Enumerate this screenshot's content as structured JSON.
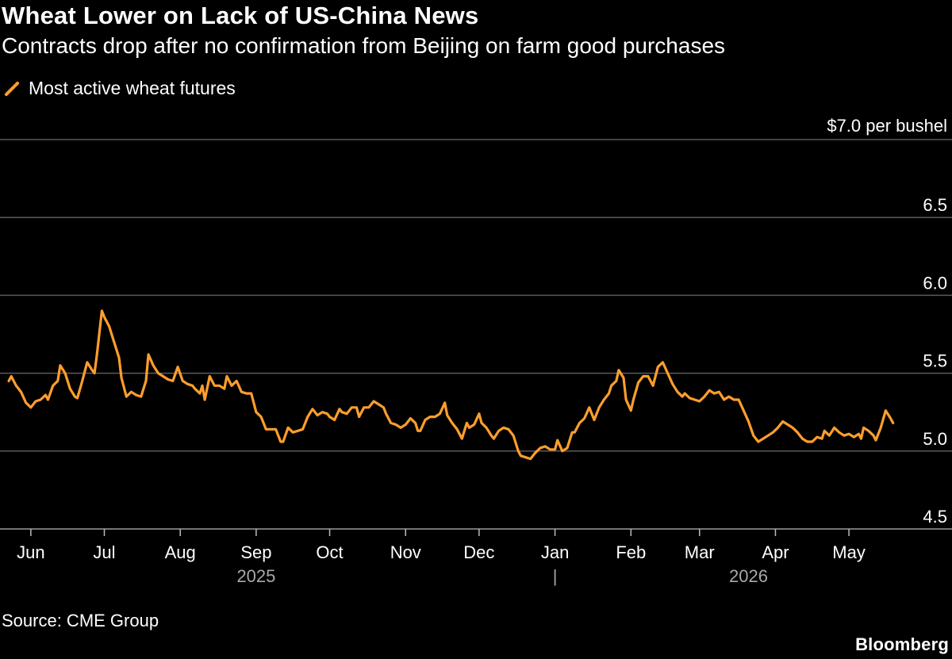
{
  "header": {
    "title": "Wheat Lower on Lack of US-China News",
    "subtitle": "Contracts drop after no confirmation from Beijing on farm good purchases"
  },
  "footer": {
    "source": "Source: CME Group",
    "brand": "Bloomberg"
  },
  "colors": {
    "background": "#000000",
    "series": "#ff9e2c",
    "grid": "#5a5a5a",
    "year_label": "#a8a8a8"
  },
  "chart_data": {
    "type": "line",
    "legend": {
      "placement": "top-left"
    },
    "grid": true,
    "y_axis": {
      "position": "right",
      "unit_label": "$7.0 per bushel",
      "ylim": [
        4.5,
        7.0
      ],
      "ticks": [
        {
          "value": 7.0,
          "label": ""
        },
        {
          "value": 6.5,
          "label": "6.5"
        },
        {
          "value": 6.0,
          "label": "6.0"
        },
        {
          "value": 5.5,
          "label": "5.5"
        },
        {
          "value": 5.0,
          "label": "5.0"
        },
        {
          "value": 4.5,
          "label": "4.5"
        }
      ]
    },
    "x_axis": {
      "xlim": [
        "2025-05-22",
        "2026-05-23"
      ],
      "month_ticks": [
        {
          "date": "2025-06-01",
          "label": "Jun"
        },
        {
          "date": "2025-07-01",
          "label": "Jul"
        },
        {
          "date": "2025-08-01",
          "label": "Aug"
        },
        {
          "date": "2025-09-01",
          "label": "Sep"
        },
        {
          "date": "2025-10-01",
          "label": "Oct"
        },
        {
          "date": "2025-11-01",
          "label": "Nov"
        },
        {
          "date": "2025-12-01",
          "label": "Dec"
        },
        {
          "date": "2026-01-01",
          "label": "Jan"
        },
        {
          "date": "2026-02-01",
          "label": "Feb"
        },
        {
          "date": "2026-03-01",
          "label": "Mar"
        },
        {
          "date": "2026-04-01",
          "label": "Apr"
        },
        {
          "date": "2026-05-01",
          "label": "May"
        }
      ],
      "year_labels": [
        {
          "date": "2025-09-01",
          "label": "2025"
        },
        {
          "date": "2026-03-21",
          "label": "2026"
        }
      ],
      "year_divider": {
        "date": "2026-01-01",
        "label": "|"
      }
    },
    "series": [
      {
        "name": "Most active wheat futures",
        "points": [
          [
            "2025-05-23",
            5.45
          ],
          [
            "2025-05-24",
            5.48
          ],
          [
            "2025-05-26",
            5.42
          ],
          [
            "2025-05-28",
            5.38
          ],
          [
            "2025-05-30",
            5.31
          ],
          [
            "2025-06-01",
            5.28
          ],
          [
            "2025-06-03",
            5.32
          ],
          [
            "2025-06-05",
            5.33
          ],
          [
            "2025-06-07",
            5.36
          ],
          [
            "2025-06-08",
            5.33
          ],
          [
            "2025-06-10",
            5.42
          ],
          [
            "2025-06-12",
            5.45
          ],
          [
            "2025-06-13",
            5.55
          ],
          [
            "2025-06-15",
            5.5
          ],
          [
            "2025-06-17",
            5.4
          ],
          [
            "2025-06-19",
            5.35
          ],
          [
            "2025-06-20",
            5.34
          ],
          [
            "2025-06-22",
            5.45
          ],
          [
            "2025-06-24",
            5.57
          ],
          [
            "2025-06-26",
            5.52
          ],
          [
            "2025-06-27",
            5.5
          ],
          [
            "2025-06-28",
            5.62
          ],
          [
            "2025-06-30",
            5.9
          ],
          [
            "2025-07-01",
            5.86
          ],
          [
            "2025-07-03",
            5.8
          ],
          [
            "2025-07-05",
            5.7
          ],
          [
            "2025-07-07",
            5.6
          ],
          [
            "2025-07-08",
            5.47
          ],
          [
            "2025-07-10",
            5.35
          ],
          [
            "2025-07-12",
            5.38
          ],
          [
            "2025-07-14",
            5.36
          ],
          [
            "2025-07-16",
            5.35
          ],
          [
            "2025-07-18",
            5.45
          ],
          [
            "2025-07-19",
            5.62
          ],
          [
            "2025-07-21",
            5.55
          ],
          [
            "2025-07-23",
            5.5
          ],
          [
            "2025-07-25",
            5.48
          ],
          [
            "2025-07-27",
            5.46
          ],
          [
            "2025-07-29",
            5.45
          ],
          [
            "2025-07-31",
            5.54
          ],
          [
            "2025-08-02",
            5.45
          ],
          [
            "2025-08-04",
            5.43
          ],
          [
            "2025-08-06",
            5.42
          ],
          [
            "2025-08-07",
            5.4
          ],
          [
            "2025-08-09",
            5.37
          ],
          [
            "2025-08-10",
            5.42
          ],
          [
            "2025-08-11",
            5.33
          ],
          [
            "2025-08-13",
            5.48
          ],
          [
            "2025-08-15",
            5.42
          ],
          [
            "2025-08-17",
            5.42
          ],
          [
            "2025-08-19",
            5.4
          ],
          [
            "2025-08-20",
            5.48
          ],
          [
            "2025-08-22",
            5.42
          ],
          [
            "2025-08-24",
            5.45
          ],
          [
            "2025-08-26",
            5.38
          ],
          [
            "2025-08-28",
            5.37
          ],
          [
            "2025-08-30",
            5.37
          ],
          [
            "2025-09-01",
            5.25
          ],
          [
            "2025-09-03",
            5.22
          ],
          [
            "2025-09-05",
            5.14
          ],
          [
            "2025-09-07",
            5.14
          ],
          [
            "2025-09-09",
            5.14
          ],
          [
            "2025-09-11",
            5.06
          ],
          [
            "2025-09-12",
            5.06
          ],
          [
            "2025-09-14",
            5.15
          ],
          [
            "2025-09-16",
            5.12
          ],
          [
            "2025-09-18",
            5.13
          ],
          [
            "2025-09-20",
            5.14
          ],
          [
            "2025-09-22",
            5.22
          ],
          [
            "2025-09-24",
            5.27
          ],
          [
            "2025-09-26",
            5.23
          ],
          [
            "2025-09-28",
            5.25
          ],
          [
            "2025-09-30",
            5.24
          ],
          [
            "2025-10-01",
            5.22
          ],
          [
            "2025-10-03",
            5.2
          ],
          [
            "2025-10-05",
            5.27
          ],
          [
            "2025-10-06",
            5.25
          ],
          [
            "2025-10-08",
            5.24
          ],
          [
            "2025-10-10",
            5.28
          ],
          [
            "2025-10-12",
            5.28
          ],
          [
            "2025-10-13",
            5.22
          ],
          [
            "2025-10-15",
            5.28
          ],
          [
            "2025-10-17",
            5.28
          ],
          [
            "2025-10-19",
            5.32
          ],
          [
            "2025-10-21",
            5.3
          ],
          [
            "2025-10-23",
            5.28
          ],
          [
            "2025-10-24",
            5.24
          ],
          [
            "2025-10-26",
            5.18
          ],
          [
            "2025-10-28",
            5.17
          ],
          [
            "2025-10-30",
            5.15
          ],
          [
            "2025-11-01",
            5.17
          ],
          [
            "2025-11-03",
            5.21
          ],
          [
            "2025-11-05",
            5.18
          ],
          [
            "2025-11-06",
            5.13
          ],
          [
            "2025-11-07",
            5.13
          ],
          [
            "2025-11-09",
            5.2
          ],
          [
            "2025-11-11",
            5.22
          ],
          [
            "2025-11-13",
            5.22
          ],
          [
            "2025-11-15",
            5.24
          ],
          [
            "2025-11-17",
            5.31
          ],
          [
            "2025-11-18",
            5.23
          ],
          [
            "2025-11-20",
            5.18
          ],
          [
            "2025-11-22",
            5.14
          ],
          [
            "2025-11-24",
            5.08
          ],
          [
            "2025-11-26",
            5.18
          ],
          [
            "2025-11-27",
            5.15
          ],
          [
            "2025-11-29",
            5.17
          ],
          [
            "2025-12-01",
            5.24
          ],
          [
            "2025-12-02",
            5.18
          ],
          [
            "2025-12-04",
            5.15
          ],
          [
            "2025-12-06",
            5.1
          ],
          [
            "2025-12-07",
            5.08
          ],
          [
            "2025-12-09",
            5.13
          ],
          [
            "2025-12-11",
            5.15
          ],
          [
            "2025-12-13",
            5.14
          ],
          [
            "2025-12-15",
            5.1
          ],
          [
            "2025-12-17",
            5.0
          ],
          [
            "2025-12-18",
            4.97
          ],
          [
            "2025-12-20",
            4.96
          ],
          [
            "2025-12-22",
            4.95
          ],
          [
            "2025-12-24",
            4.99
          ],
          [
            "2025-12-26",
            5.02
          ],
          [
            "2025-12-28",
            5.03
          ],
          [
            "2025-12-30",
            5.01
          ],
          [
            "2026-01-01",
            5.01
          ],
          [
            "2026-01-02",
            5.07
          ],
          [
            "2026-01-04",
            5.0
          ],
          [
            "2026-01-06",
            5.02
          ],
          [
            "2026-01-08",
            5.12
          ],
          [
            "2026-01-09",
            5.12
          ],
          [
            "2026-01-11",
            5.18
          ],
          [
            "2026-01-13",
            5.21
          ],
          [
            "2026-01-15",
            5.28
          ],
          [
            "2026-01-17",
            5.2
          ],
          [
            "2026-01-19",
            5.28
          ],
          [
            "2026-01-21",
            5.33
          ],
          [
            "2026-01-23",
            5.37
          ],
          [
            "2026-01-24",
            5.42
          ],
          [
            "2026-01-26",
            5.45
          ],
          [
            "2026-01-27",
            5.52
          ],
          [
            "2026-01-29",
            5.47
          ],
          [
            "2026-01-30",
            5.33
          ],
          [
            "2026-02-01",
            5.26
          ],
          [
            "2026-02-02",
            5.33
          ],
          [
            "2026-02-04",
            5.44
          ],
          [
            "2026-02-06",
            5.48
          ],
          [
            "2026-02-08",
            5.48
          ],
          [
            "2026-02-10",
            5.42
          ],
          [
            "2026-02-12",
            5.54
          ],
          [
            "2026-02-14",
            5.57
          ],
          [
            "2026-02-16",
            5.5
          ],
          [
            "2026-02-18",
            5.43
          ],
          [
            "2026-02-20",
            5.38
          ],
          [
            "2026-02-22",
            5.35
          ],
          [
            "2026-02-23",
            5.37
          ],
          [
            "2026-02-25",
            5.34
          ],
          [
            "2026-02-27",
            5.33
          ],
          [
            "2026-03-01",
            5.32
          ],
          [
            "2026-03-03",
            5.35
          ],
          [
            "2026-03-05",
            5.39
          ],
          [
            "2026-03-07",
            5.37
          ],
          [
            "2026-03-09",
            5.38
          ],
          [
            "2026-03-11",
            5.33
          ],
          [
            "2026-03-13",
            5.35
          ],
          [
            "2026-03-15",
            5.33
          ],
          [
            "2026-03-17",
            5.33
          ],
          [
            "2026-03-19",
            5.26
          ],
          [
            "2026-03-21",
            5.19
          ],
          [
            "2026-03-23",
            5.1
          ],
          [
            "2026-03-25",
            5.06
          ],
          [
            "2026-03-27",
            5.08
          ],
          [
            "2026-03-29",
            5.1
          ],
          [
            "2026-03-31",
            5.12
          ],
          [
            "2026-04-02",
            5.15
          ],
          [
            "2026-04-04",
            5.19
          ],
          [
            "2026-04-06",
            5.17
          ],
          [
            "2026-04-08",
            5.15
          ],
          [
            "2026-04-10",
            5.12
          ],
          [
            "2026-04-12",
            5.08
          ],
          [
            "2026-04-14",
            5.06
          ],
          [
            "2026-04-16",
            5.06
          ],
          [
            "2026-04-18",
            5.09
          ],
          [
            "2026-04-20",
            5.08
          ],
          [
            "2026-04-21",
            5.13
          ],
          [
            "2026-04-23",
            5.1
          ],
          [
            "2026-04-25",
            5.15
          ],
          [
            "2026-04-27",
            5.12
          ],
          [
            "2026-04-29",
            5.1
          ],
          [
            "2026-05-01",
            5.11
          ],
          [
            "2026-05-03",
            5.09
          ],
          [
            "2026-05-05",
            5.11
          ],
          [
            "2026-05-06",
            5.08
          ],
          [
            "2026-05-07",
            5.15
          ],
          [
            "2026-05-09",
            5.13
          ],
          [
            "2026-05-11",
            5.1
          ],
          [
            "2026-05-12",
            5.07
          ],
          [
            "2026-05-14",
            5.15
          ],
          [
            "2026-05-16",
            5.26
          ],
          [
            "2026-05-18",
            5.21
          ],
          [
            "2026-05-19",
            5.18
          ]
        ]
      }
    ]
  }
}
